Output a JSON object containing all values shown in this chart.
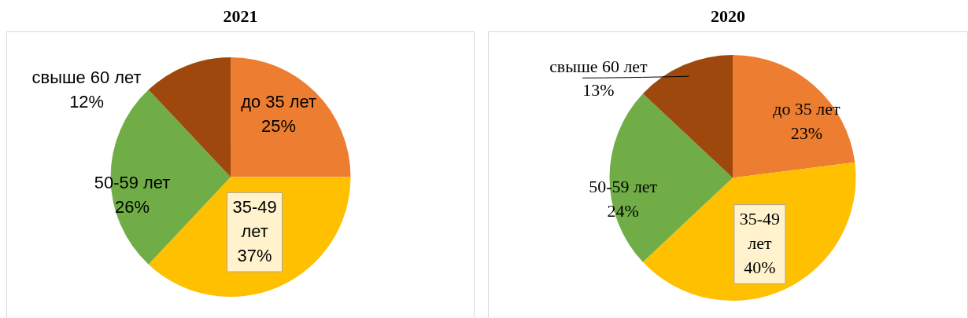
{
  "chart_data": [
    {
      "type": "pie",
      "title": "2021",
      "categories": [
        "до 35 лет",
        "35-49 лет",
        "50-59 лет",
        "свыше 60 лет"
      ],
      "values": [
        25,
        37,
        26,
        12
      ],
      "colors": [
        "#ed7d31",
        "#ffc000",
        "#70ad47",
        "#9e480e"
      ],
      "value_labels": [
        "25%",
        "37%",
        "26%",
        "12%"
      ]
    },
    {
      "type": "pie",
      "title": "2020",
      "categories": [
        "до 35 лет",
        "35-49 лет",
        "50-59 лет",
        "свыше 60 лет"
      ],
      "values": [
        23,
        40,
        24,
        13
      ],
      "colors": [
        "#ed7d31",
        "#ffc000",
        "#70ad47",
        "#9e480e"
      ],
      "value_labels": [
        "23%",
        "40%",
        "24%",
        "13%"
      ]
    }
  ]
}
